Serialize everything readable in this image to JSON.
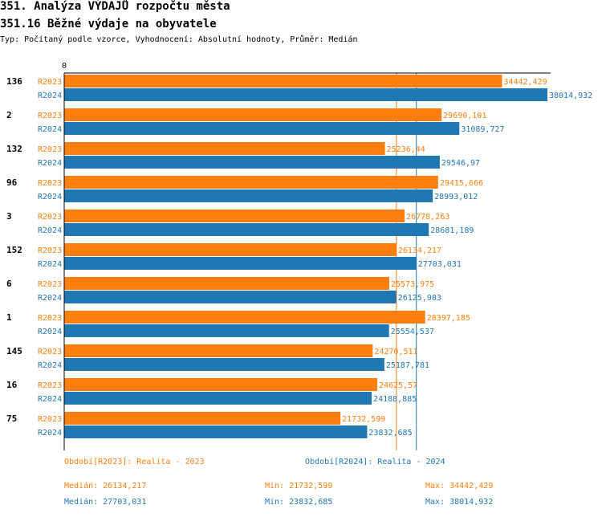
{
  "header": {
    "title": "351. Analýza VÝDAJŮ rozpočtu města",
    "subtitle": "351.16 Běžné výdaje na obyvatele",
    "type_line": "Typ: Počítaný podle vzorce, Vyhodnocení: Absolutní hodnoty, Průměr: Medián"
  },
  "colors": {
    "r2023": "#ff7f0e",
    "r2024": "#1f77b4"
  },
  "chart_data": {
    "type": "bar",
    "orientation": "horizontal",
    "title": "351.16 Běžné výdaje na obyvatele",
    "axis_zero_label": "0",
    "xlim": [
      0,
      38014.932
    ],
    "grid": false,
    "categories": [
      "136",
      "2",
      "132",
      "96",
      "3",
      "152",
      "6",
      "1",
      "145",
      "16",
      "75"
    ],
    "series": [
      {
        "name": "R2023",
        "values": [
          34442.429,
          29690.101,
          25236.44,
          29415.666,
          26778.263,
          26134.217,
          25573.975,
          28397.185,
          24270.511,
          24625.57,
          21732.599
        ],
        "labels": [
          "34442,429",
          "29690,101",
          "25236,44",
          "29415,666",
          "26778,263",
          "26134,217",
          "25573,975",
          "28397,185",
          "24270,511",
          "24625,57",
          "21732,599"
        ]
      },
      {
        "name": "R2024",
        "values": [
          38014.932,
          31089.727,
          29546.97,
          28993.012,
          28681.189,
          27703.031,
          26125.983,
          25554.537,
          25187.781,
          24188.885,
          23832.685
        ],
        "labels": [
          "38014,932",
          "31089,727",
          "29546,97",
          "28993,012",
          "28681,189",
          "27703,031",
          "26125,983",
          "25554,537",
          "25187,781",
          "24188,885",
          "23832,685"
        ]
      }
    ],
    "median_lines": [
      26134.217,
      27703.031
    ]
  },
  "legend": {
    "r2023": "Období[R2023]: Realita - 2023",
    "r2024": "Období[R2024]: Realita - 2024"
  },
  "stats": {
    "r2023": {
      "median": "Medián: 26134,217",
      "min": "Min: 21732,599",
      "max": "Max: 34442,429"
    },
    "r2024": {
      "median": "Medián: 27703,031",
      "min": "Min: 23832,685",
      "max": "Max: 38014,932"
    }
  }
}
